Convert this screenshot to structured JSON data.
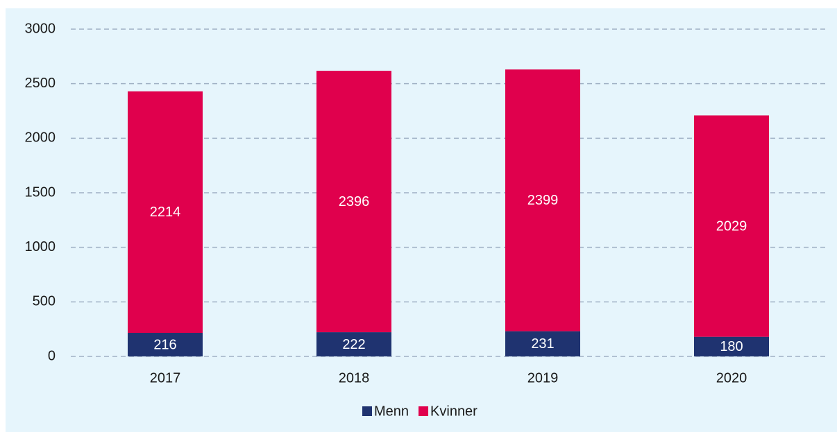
{
  "chart_data": {
    "type": "stacked_bar",
    "categories": [
      "2017",
      "2018",
      "2019",
      "2020"
    ],
    "series": [
      {
        "name": "Menn",
        "color": "#1f3370",
        "values": [
          216,
          222,
          231,
          180
        ]
      },
      {
        "name": "Kvinner",
        "color": "#e0004d",
        "values": [
          2214,
          2396,
          2399,
          2029
        ]
      }
    ],
    "ylim": [
      0,
      3000
    ],
    "yticks": [
      0,
      500,
      1000,
      1500,
      2000,
      2500,
      3000
    ],
    "grid": true,
    "legend": "bottom"
  }
}
